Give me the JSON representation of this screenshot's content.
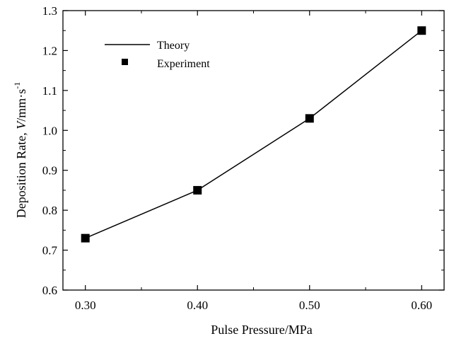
{
  "chart_data": {
    "type": "line",
    "xlabel": "Pulse Pressure/MPa",
    "ylabel": {
      "prefix": "Deposition Rate, ",
      "symbol": "V",
      "unit": "/mm·s",
      "exponent": "-1"
    },
    "xlim": [
      0.28,
      0.62
    ],
    "ylim": [
      0.6,
      1.3
    ],
    "x_ticks": [
      "0.30",
      "0.40",
      "0.50",
      "0.60"
    ],
    "x_tick_values": [
      0.3,
      0.4,
      0.5,
      0.6
    ],
    "x_minor_ticks": [
      0.35,
      0.45,
      0.55
    ],
    "y_ticks": [
      "0.6",
      "0.7",
      "0.8",
      "0.9",
      "1.0",
      "1.1",
      "1.2",
      "1.3"
    ],
    "y_tick_values": [
      0.6,
      0.7,
      0.8,
      0.9,
      1.0,
      1.1,
      1.2,
      1.3
    ],
    "y_minor_ticks": [
      0.65,
      0.75,
      0.85,
      0.95,
      1.05,
      1.15,
      1.25
    ],
    "grid": false,
    "legend_position": "top-left",
    "series": [
      {
        "name": "Theory",
        "style": "line",
        "color": "#000000",
        "x": [
          0.3,
          0.4,
          0.5,
          0.6
        ],
        "y": [
          0.73,
          0.85,
          1.03,
          1.25
        ]
      },
      {
        "name": "Experiment",
        "style": "square-marker",
        "color": "#000000",
        "x": [
          0.3,
          0.4,
          0.5,
          0.6
        ],
        "y": [
          0.73,
          0.85,
          1.03,
          1.25
        ]
      }
    ]
  }
}
